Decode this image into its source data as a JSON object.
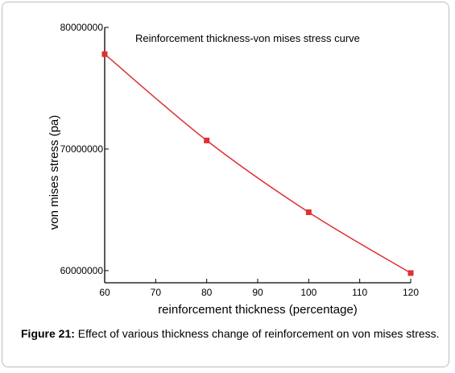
{
  "chart_data": {
    "type": "line",
    "title": "Reinforcement thickness-von mises stress curve",
    "xlabel": "reinforcement thickness (percentage)",
    "ylabel": "von mises stress (pa)",
    "x": [
      60,
      80,
      100,
      120
    ],
    "series": [
      {
        "values": [
          77800000,
          70700000,
          64800000,
          59800000
        ]
      }
    ],
    "xlim": [
      60,
      120
    ],
    "ylim": [
      59000000,
      80000000
    ],
    "x_ticks": [
      60,
      70,
      80,
      90,
      100,
      110,
      120
    ],
    "x_tick_labels": [
      "60",
      "70",
      "80",
      "90",
      "100",
      "110",
      "120"
    ],
    "y_ticks": [
      60000000,
      70000000,
      80000000
    ],
    "y_tick_labels": [
      "60000000",
      "70000000",
      "80000000"
    ],
    "grid": false,
    "legend": "none",
    "colors": {
      "series": "#e03030",
      "axis": "#000000"
    }
  },
  "caption": {
    "label": "Figure 21:",
    "text": " Effect of various thickness change of reinforcement on von mises stress."
  }
}
